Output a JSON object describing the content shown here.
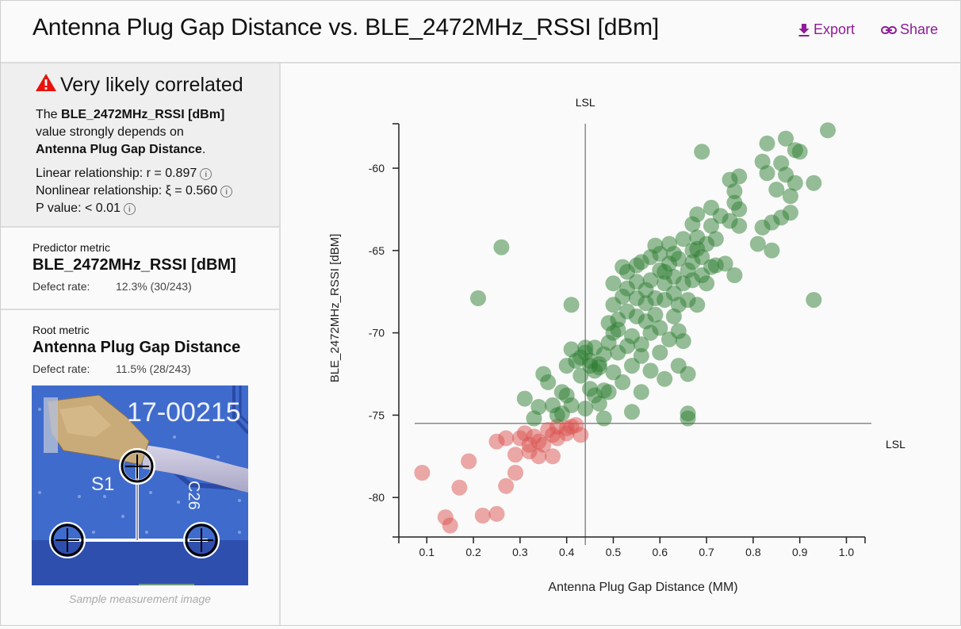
{
  "header": {
    "title": "Antenna Plug Gap Distance vs. BLE_2472MHz_RSSI [dBm]",
    "export_label": "Export",
    "share_label": "Share",
    "accent_color": "#8e1c97"
  },
  "summary": {
    "icon": "warning-icon",
    "title": "Very likely correlated",
    "desc_prefix": "The ",
    "desc_metric": "BLE_2472MHz_RSSI [dBm]",
    "desc_middle": " value strongly depends on ",
    "desc_root": "Antenna Plug Gap Distance",
    "desc_suffix": ".",
    "linear": "Linear relationship: r = 0.897",
    "nonlinear": "Nonlinear relationship: ξ = 0.560",
    "pvalue": "P value: < 0.01",
    "info_glyph": "i"
  },
  "predictor": {
    "label": "Predictor metric",
    "name": "BLE_2472MHz_RSSI [dBM]",
    "defect_label": "Defect rate:",
    "defect_value": "12.3% (30/243)"
  },
  "root": {
    "label": "Root metric",
    "name": "Antenna Plug Gap Distance",
    "defect_label": "Defect rate:",
    "defect_value": "11.5% (28/243)",
    "image_text_1": "17-00215",
    "image_text_2": "S1",
    "image_text_3": "C26",
    "caption": "Sample measurement image"
  },
  "chart_data": {
    "type": "scatter",
    "title": "",
    "xlabel": "Antenna Plug Gap Distance (MM)",
    "ylabel": "BLE_2472MHz_RSSI [dBM]",
    "xlim": [
      0.04,
      1.04
    ],
    "ylim": [
      -82.4,
      -57.3
    ],
    "xticks": [
      0.1,
      0.2,
      0.3,
      0.4,
      0.5,
      0.6,
      0.7,
      0.8,
      0.9,
      1.0
    ],
    "xtick_labels": [
      "0.1",
      "0.2",
      "0.3",
      "0.4",
      "0.5",
      "0.6",
      "0.7",
      "0.8",
      "0.9",
      "1.0"
    ],
    "yticks": [
      -60,
      -65,
      -70,
      -75,
      -80
    ],
    "ytick_labels": [
      "-60",
      "-65",
      "-70",
      "-75",
      "-80"
    ],
    "grid": false,
    "lsl_x": {
      "value": 0.44,
      "label": "LSL"
    },
    "lsl_y": {
      "value": -75.5,
      "label": "LSL"
    },
    "colors": {
      "pass": "#2e7d32",
      "fail": "#d9534f"
    },
    "series": [
      {
        "name": "fail",
        "points": [
          [
            0.09,
            -78.5
          ],
          [
            0.14,
            -81.2
          ],
          [
            0.15,
            -81.7
          ],
          [
            0.17,
            -79.4
          ],
          [
            0.19,
            -77.8
          ],
          [
            0.22,
            -81.1
          ],
          [
            0.25,
            -81.0
          ],
          [
            0.25,
            -76.6
          ],
          [
            0.27,
            -76.4
          ],
          [
            0.27,
            -79.3
          ],
          [
            0.29,
            -77.4
          ],
          [
            0.29,
            -78.5
          ],
          [
            0.3,
            -76.4
          ],
          [
            0.31,
            -76.1
          ],
          [
            0.32,
            -77.2
          ],
          [
            0.32,
            -76.8
          ],
          [
            0.33,
            -76.3
          ],
          [
            0.34,
            -76.6
          ],
          [
            0.34,
            -77.5
          ],
          [
            0.35,
            -76.8
          ],
          [
            0.36,
            -75.9
          ],
          [
            0.37,
            -77.5
          ],
          [
            0.37,
            -76.2
          ],
          [
            0.38,
            -75.7
          ],
          [
            0.38,
            -76.4
          ],
          [
            0.4,
            -75.8
          ],
          [
            0.4,
            -76.1
          ],
          [
            0.41,
            -75.7
          ],
          [
            0.43,
            -76.2
          ],
          [
            0.42,
            -75.6
          ]
        ]
      },
      {
        "name": "pass",
        "points": [
          [
            0.26,
            -64.8
          ],
          [
            0.21,
            -67.9
          ],
          [
            0.41,
            -68.3
          ],
          [
            0.31,
            -74.0
          ],
          [
            0.33,
            -75.2
          ],
          [
            0.34,
            -74.5
          ],
          [
            0.35,
            -72.5
          ],
          [
            0.36,
            -73.0
          ],
          [
            0.37,
            -74.4
          ],
          [
            0.38,
            -75.0
          ],
          [
            0.39,
            -73.6
          ],
          [
            0.39,
            -74.9
          ],
          [
            0.4,
            -72.0
          ],
          [
            0.4,
            -73.8
          ],
          [
            0.41,
            -74.4
          ],
          [
            0.41,
            -71.0
          ],
          [
            0.42,
            -71.7
          ],
          [
            0.43,
            -72.6
          ],
          [
            0.44,
            -71.2
          ],
          [
            0.44,
            -74.6
          ],
          [
            0.45,
            -72.0
          ],
          [
            0.45,
            -73.4
          ],
          [
            0.46,
            -72.3
          ],
          [
            0.46,
            -73.8
          ],
          [
            0.46,
            -70.9
          ],
          [
            0.47,
            -74.3
          ],
          [
            0.47,
            -72.1
          ],
          [
            0.48,
            -73.5
          ],
          [
            0.48,
            -75.2
          ],
          [
            0.48,
            -71.3
          ],
          [
            0.49,
            -70.6
          ],
          [
            0.49,
            -69.4
          ],
          [
            0.49,
            -73.6
          ],
          [
            0.5,
            -72.4
          ],
          [
            0.5,
            -70.0
          ],
          [
            0.5,
            -68.3
          ],
          [
            0.5,
            -67.0
          ],
          [
            0.51,
            -71.2
          ],
          [
            0.51,
            -69.2
          ],
          [
            0.52,
            -67.8
          ],
          [
            0.52,
            -73.0
          ],
          [
            0.52,
            -66.0
          ],
          [
            0.53,
            -70.8
          ],
          [
            0.53,
            -68.7
          ],
          [
            0.53,
            -67.3
          ],
          [
            0.54,
            -74.8
          ],
          [
            0.54,
            -72.0
          ],
          [
            0.54,
            -70.2
          ],
          [
            0.55,
            -69.0
          ],
          [
            0.55,
            -67.9
          ],
          [
            0.55,
            -66.9
          ],
          [
            0.55,
            -65.9
          ],
          [
            0.56,
            -71.4
          ],
          [
            0.56,
            -73.6
          ],
          [
            0.56,
            -70.7
          ],
          [
            0.57,
            -69.3
          ],
          [
            0.57,
            -68.2
          ],
          [
            0.57,
            -67.4
          ],
          [
            0.58,
            -72.3
          ],
          [
            0.58,
            -70.0
          ],
          [
            0.58,
            -66.8
          ],
          [
            0.59,
            -68.9
          ],
          [
            0.59,
            -67.9
          ],
          [
            0.6,
            -71.2
          ],
          [
            0.6,
            -69.7
          ],
          [
            0.6,
            -66.2
          ],
          [
            0.6,
            -65.2
          ],
          [
            0.61,
            -72.8
          ],
          [
            0.61,
            -68.0
          ],
          [
            0.61,
            -67.0
          ],
          [
            0.62,
            -70.4
          ],
          [
            0.62,
            -65.8
          ],
          [
            0.62,
            -64.6
          ],
          [
            0.63,
            -67.6
          ],
          [
            0.63,
            -69.0
          ],
          [
            0.63,
            -66.6
          ],
          [
            0.64,
            -72.0
          ],
          [
            0.64,
            -68.3
          ],
          [
            0.64,
            -65.5
          ],
          [
            0.65,
            -67.0
          ],
          [
            0.65,
            -64.3
          ],
          [
            0.65,
            -70.5
          ],
          [
            0.66,
            -75.2
          ],
          [
            0.66,
            -74.9
          ],
          [
            0.66,
            -72.5
          ],
          [
            0.66,
            -66.2
          ],
          [
            0.66,
            -68.0
          ],
          [
            0.67,
            -65.0
          ],
          [
            0.67,
            -63.4
          ],
          [
            0.67,
            -66.8
          ],
          [
            0.68,
            -64.2
          ],
          [
            0.68,
            -68.3
          ],
          [
            0.68,
            -62.8
          ],
          [
            0.69,
            -66.5
          ],
          [
            0.69,
            -65.4
          ],
          [
            0.69,
            -59.0
          ],
          [
            0.7,
            -67.0
          ],
          [
            0.7,
            -64.6
          ],
          [
            0.71,
            -63.5
          ],
          [
            0.71,
            -62.4
          ],
          [
            0.71,
            -66.0
          ],
          [
            0.72,
            -64.3
          ],
          [
            0.72,
            -65.9
          ],
          [
            0.73,
            -62.9
          ],
          [
            0.74,
            -65.8
          ],
          [
            0.75,
            -60.7
          ],
          [
            0.75,
            -63.2
          ],
          [
            0.76,
            -62.1
          ],
          [
            0.76,
            -61.4
          ],
          [
            0.76,
            -66.5
          ],
          [
            0.77,
            -60.5
          ],
          [
            0.77,
            -62.5
          ],
          [
            0.77,
            -63.5
          ],
          [
            0.81,
            -64.6
          ],
          [
            0.82,
            -63.6
          ],
          [
            0.82,
            -59.6
          ],
          [
            0.83,
            -58.5
          ],
          [
            0.83,
            -60.3
          ],
          [
            0.84,
            -65.0
          ],
          [
            0.84,
            -63.3
          ],
          [
            0.85,
            -61.3
          ],
          [
            0.86,
            -63.0
          ],
          [
            0.86,
            -59.7
          ],
          [
            0.87,
            -58.2
          ],
          [
            0.87,
            -60.4
          ],
          [
            0.88,
            -61.7
          ],
          [
            0.88,
            -62.7
          ],
          [
            0.89,
            -58.9
          ],
          [
            0.89,
            -60.9
          ],
          [
            0.9,
            -59.0
          ],
          [
            0.93,
            -60.9
          ],
          [
            0.93,
            -68.0
          ],
          [
            0.96,
            -57.7
          ],
          [
            0.44,
            -70.9
          ],
          [
            0.43,
            -71.5
          ],
          [
            0.45,
            -71.7
          ],
          [
            0.47,
            -71.9
          ],
          [
            0.51,
            -69.8
          ],
          [
            0.53,
            -66.3
          ],
          [
            0.56,
            -65.7
          ],
          [
            0.58,
            -65.4
          ],
          [
            0.59,
            -64.7
          ],
          [
            0.61,
            -66.3
          ],
          [
            0.63,
            -65.2
          ],
          [
            0.64,
            -69.9
          ],
          [
            0.67,
            -65.7
          ],
          [
            0.68,
            -64.9
          ]
        ]
      }
    ]
  }
}
